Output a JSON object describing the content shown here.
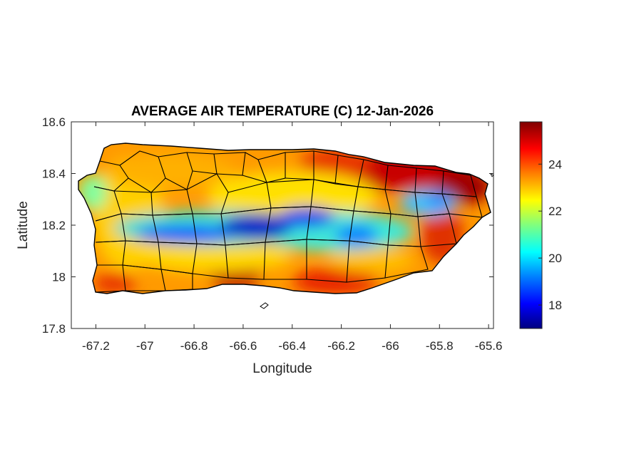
{
  "map": {
    "title": "AVERAGE AIR TEMPERATURE (C) 12-Jan-2026",
    "xlabel": "Longitude",
    "ylabel": "Latitude",
    "region": "Puerto Rico",
    "xlim": [
      -67.3,
      -65.58
    ],
    "ylim": [
      17.8,
      18.6
    ],
    "xticks": [
      -67.2,
      -67,
      -66.8,
      -66.6,
      -66.4,
      -66.2,
      -66,
      -65.8,
      -65.6
    ],
    "yticks": [
      18.6,
      18.4,
      18.2,
      18,
      17.8
    ],
    "colormap": "jet",
    "colorbar": {
      "range": [
        17,
        25.8
      ],
      "ticks": [
        24,
        22,
        20,
        18
      ],
      "stops": [
        "#00007f",
        "#0000ff",
        "#007fff",
        "#00ffff",
        "#7fff7f",
        "#ffff00",
        "#ff7f00",
        "#ff0000",
        "#7f0000"
      ]
    },
    "grid": false,
    "labels": {
      "xticks": [
        "-67.2",
        "-67",
        "-66.8",
        "-66.6",
        "-66.4",
        "-66.2",
        "-66",
        "-65.8",
        "-65.6"
      ],
      "yticks": [
        "18.6",
        "18.4",
        "18.2",
        "18",
        "17.8"
      ],
      "cticks": [
        "24",
        "22",
        "20",
        "18"
      ]
    }
  }
}
